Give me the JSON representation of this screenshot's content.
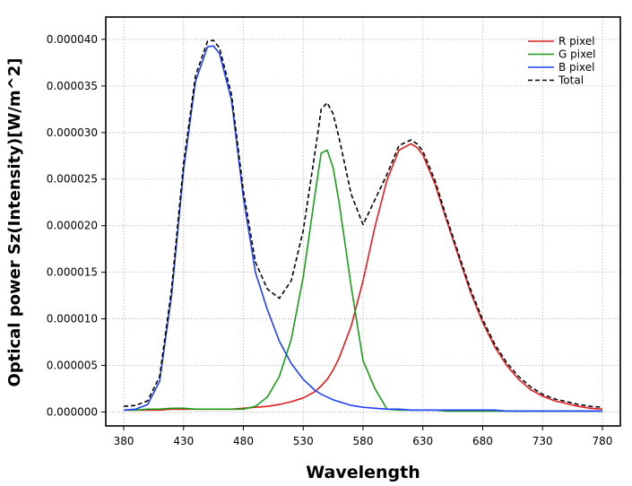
{
  "chart_data": {
    "type": "line",
    "title": "",
    "xlabel": "Wavelength",
    "ylabel": "Optical power Sz(Intensity)[W/m^2]",
    "xlim": [
      365,
      795
    ],
    "ylim": [
      -1.5e-06,
      4.24e-05
    ],
    "xticks": [
      380,
      430,
      480,
      530,
      580,
      630,
      680,
      730,
      780
    ],
    "xtick_labels": [
      "380",
      "430",
      "480",
      "530",
      "580",
      "630",
      "680",
      "730",
      "780"
    ],
    "yticks": [
      0,
      5e-06,
      1e-05,
      1.5e-05,
      2e-05,
      2.5e-05,
      3e-05,
      3.5e-05,
      4e-05
    ],
    "ytick_labels": [
      "0.000000",
      "0.000005",
      "0.000010",
      "0.000015",
      "0.000020",
      "0.000025",
      "0.000030",
      "0.000035",
      "0.000040"
    ],
    "grid": true,
    "legend_position": "top-right",
    "x": [
      380,
      390,
      400,
      410,
      420,
      430,
      440,
      450,
      455,
      460,
      470,
      480,
      490,
      500,
      510,
      520,
      530,
      540,
      545,
      550,
      555,
      560,
      570,
      580,
      590,
      600,
      610,
      620,
      625,
      630,
      640,
      650,
      660,
      670,
      680,
      690,
      700,
      710,
      720,
      730,
      740,
      750,
      760,
      770,
      780
    ],
    "series": [
      {
        "name": "R pixel",
        "color": "#e41a1c",
        "dash": "solid",
        "values": [
          2e-07,
          2e-07,
          2e-07,
          2e-07,
          3e-07,
          3e-07,
          3e-07,
          3e-07,
          3e-07,
          3e-07,
          3e-07,
          4e-07,
          5e-07,
          6e-07,
          8e-07,
          1.1e-06,
          1.5e-06,
          2.2e-06,
          2.8e-06,
          3.5e-06,
          4.5e-06,
          5.8e-06,
          9.2e-06,
          1.41e-05,
          1.99e-05,
          2.49e-05,
          2.81e-05,
          2.88e-05,
          2.84e-05,
          2.76e-05,
          2.45e-05,
          2.05e-05,
          1.66e-05,
          1.28e-05,
          9.6e-06,
          7e-06,
          5e-06,
          3.5e-06,
          2.4e-06,
          1.7e-06,
          1.2e-06,
          9e-07,
          6e-07,
          4e-07,
          3e-07
        ]
      },
      {
        "name": "G pixel",
        "color": "#1a9e1a",
        "dash": "solid",
        "values": [
          2e-07,
          2e-07,
          3e-07,
          3e-07,
          4e-07,
          4e-07,
          3e-07,
          3e-07,
          3e-07,
          3e-07,
          3e-07,
          3e-07,
          6e-07,
          1.6e-06,
          3.8e-06,
          7.8e-06,
          1.45e-05,
          2.35e-05,
          2.78e-05,
          2.81e-05,
          2.62e-05,
          2.25e-05,
          1.35e-05,
          5.5e-06,
          2.5e-06,
          3e-07,
          2e-07,
          2e-07,
          2e-07,
          2e-07,
          2e-07,
          1e-07,
          1e-07,
          1e-07,
          1e-07,
          1e-07,
          1e-07,
          1e-07,
          1e-07,
          1e-07,
          1e-07,
          1e-07,
          1e-07,
          1e-07,
          1e-07
        ]
      },
      {
        "name": "B pixel",
        "color": "#1f3fff",
        "dash": "solid",
        "values": [
          2e-07,
          3e-07,
          8e-07,
          3.3e-06,
          1.25e-05,
          2.6e-05,
          3.55e-05,
          3.92e-05,
          3.93e-05,
          3.85e-05,
          3.35e-05,
          2.3e-05,
          1.5e-05,
          1.1e-05,
          7.6e-06,
          5.2e-06,
          3.5e-06,
          2.3e-06,
          1.9e-06,
          1.6e-06,
          1.3e-06,
          1.1e-06,
          7e-07,
          5e-07,
          4e-07,
          3e-07,
          3e-07,
          2e-07,
          2e-07,
          2e-07,
          2e-07,
          2e-07,
          2e-07,
          2e-07,
          2e-07,
          2e-07,
          1e-07,
          1e-07,
          1e-07,
          1e-07,
          1e-07,
          1e-07,
          1e-07,
          1e-07,
          1e-07
        ]
      },
      {
        "name": "Total",
        "color": "#000000",
        "dash": "dashed",
        "values": [
          6e-07,
          7e-07,
          1.2e-06,
          3.8e-06,
          1.32e-05,
          2.67e-05,
          3.61e-05,
          3.98e-05,
          3.99e-05,
          3.91e-05,
          3.41e-05,
          2.37e-05,
          1.61e-05,
          1.32e-05,
          1.22e-05,
          1.41e-05,
          1.95e-05,
          2.8e-05,
          3.25e-05,
          3.32e-05,
          3.2e-05,
          2.94e-05,
          2.34e-05,
          2.01e-05,
          2.28e-05,
          2.55e-05,
          2.86e-05,
          2.92e-05,
          2.88e-05,
          2.8e-05,
          2.49e-05,
          2.08e-05,
          1.69e-05,
          1.31e-05,
          9.9e-06,
          7.3e-06,
          5.3e-06,
          3.8e-06,
          2.7e-06,
          1.9e-06,
          1.4e-06,
          1.1e-06,
          8e-07,
          6e-07,
          5e-07
        ]
      }
    ]
  }
}
